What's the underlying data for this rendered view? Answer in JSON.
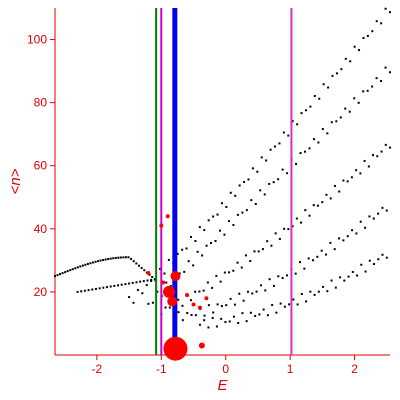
{
  "chart_data": {
    "type": "scatter",
    "title": "",
    "xlabel": "E",
    "ylabel": "<n>",
    "xlim": [
      -2.65,
      2.55
    ],
    "ylim": [
      0,
      110
    ],
    "xticks": [
      -2,
      -1,
      0,
      1,
      2
    ],
    "yticks": [
      20,
      40,
      60,
      80,
      100
    ],
    "x_tick_labels": [
      "-2",
      "-1",
      "0",
      "1",
      "2"
    ],
    "y_tick_labels": [
      "20",
      "40",
      "60",
      "80",
      "100"
    ],
    "grid": false,
    "colors": {
      "axis": "#e00000",
      "points": "#000000",
      "highlight": "#ff0000",
      "line_green": "#008000",
      "line_magenta": "#cc00cc",
      "line_blue": "#0000ee",
      "line_purple": "#cc33cc"
    },
    "vertical_lines": [
      {
        "x": -1.08,
        "color": "#008000"
      },
      {
        "x": -1.0,
        "color": "#cc00cc"
      },
      {
        "x": -0.79,
        "color": "#0000ee"
      },
      {
        "x": 1.02,
        "color": "#cc33cc"
      }
    ],
    "branches": [
      {
        "x_start": -2.65,
        "y_start": 25,
        "x_end": -1.55,
        "y_end": 30,
        "peak_x": -1.5,
        "peak_y": 31,
        "x_stop": -1.1,
        "y_stop": 24,
        "n": 40
      },
      {
        "x_start": -2.3,
        "y_start": 20,
        "x_end": -1.1,
        "y_end": 24,
        "n": 22
      },
      {
        "x_start": -1.5,
        "y_start": 17,
        "x_end": 2.55,
        "y_end": 110,
        "n": 60,
        "curve": 1.1
      },
      {
        "x_start": -1.2,
        "y_start": 16,
        "x_end": 2.55,
        "y_end": 91,
        "n": 55,
        "curve": 1.0
      },
      {
        "x_start": -1.0,
        "y_start": 14,
        "x_end": 2.55,
        "y_end": 67,
        "n": 55,
        "curve": 1.2
      },
      {
        "x_start": -0.8,
        "y_start": 12,
        "x_end": 2.5,
        "y_end": 47,
        "n": 50,
        "curve": 1.5
      },
      {
        "x_start": -0.4,
        "y_start": 10,
        "x_end": 2.5,
        "y_end": 32,
        "n": 45,
        "curve": 1.7
      }
    ],
    "highlight_points": [
      {
        "x": -0.78,
        "y": 2,
        "size": 12
      },
      {
        "x": -0.88,
        "y": 20,
        "size": 6
      },
      {
        "x": -0.83,
        "y": 17,
        "size": 5
      },
      {
        "x": -0.78,
        "y": 25,
        "size": 5
      },
      {
        "x": -0.37,
        "y": 3,
        "size": 3
      },
      {
        "x": -0.97,
        "y": 23,
        "size": 2
      },
      {
        "x": -0.9,
        "y": 44,
        "size": 2
      },
      {
        "x": -1.0,
        "y": 41,
        "size": 2
      },
      {
        "x": -0.6,
        "y": 19,
        "size": 2
      },
      {
        "x": -0.5,
        "y": 16,
        "size": 2
      },
      {
        "x": -0.3,
        "y": 18,
        "size": 2
      },
      {
        "x": -0.4,
        "y": 15,
        "size": 2
      },
      {
        "x": -1.2,
        "y": 26,
        "size": 2
      }
    ]
  }
}
